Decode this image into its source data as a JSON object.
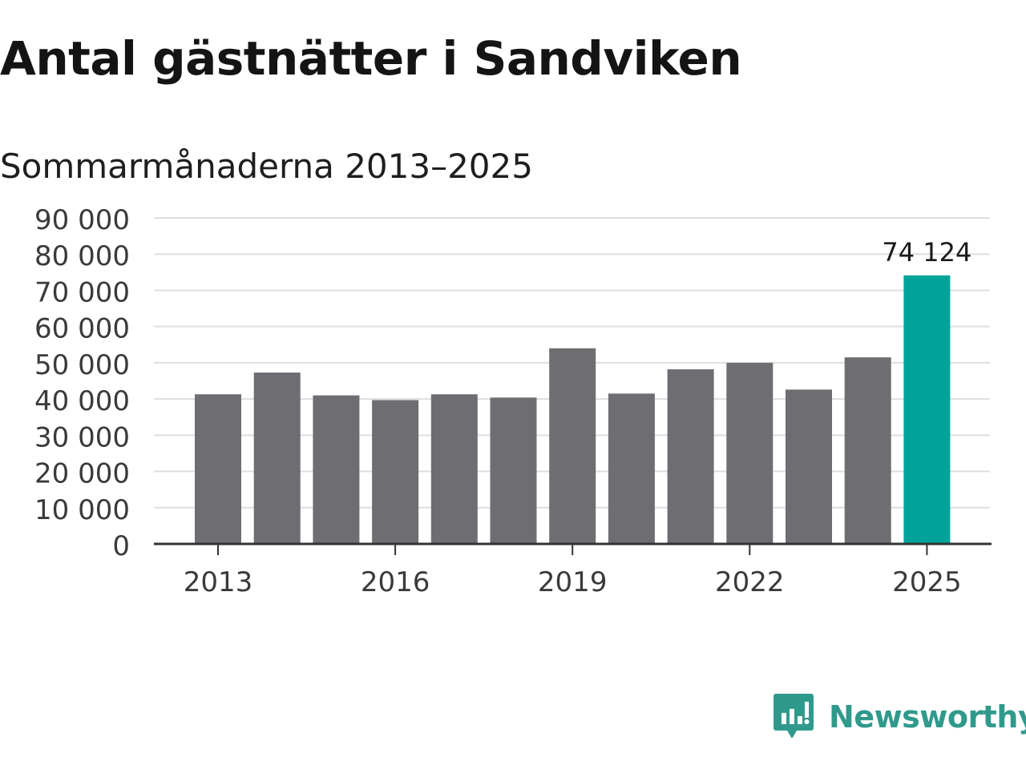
{
  "chart_data": {
    "type": "bar",
    "title": "Antal gästnätter i Sandviken",
    "subtitle": "Sommarmånaderna 2013–2025",
    "categories": [
      "2013",
      "2014",
      "2015",
      "2016",
      "2017",
      "2018",
      "2019",
      "2020",
      "2021",
      "2022",
      "2023",
      "2024",
      "2025"
    ],
    "values": [
      41300,
      47300,
      41000,
      39700,
      41300,
      40400,
      54000,
      41500,
      48200,
      50000,
      42600,
      51500,
      74124
    ],
    "x_tick_labels": [
      "2013",
      "2016",
      "2019",
      "2022",
      "2025"
    ],
    "y_tick_labels": [
      "0",
      "10 000",
      "20 000",
      "30 000",
      "40 000",
      "50 000",
      "60 000",
      "70 000",
      "80 000",
      "90 000"
    ],
    "ylim": [
      0,
      90000
    ],
    "grid": true,
    "data_labels": [
      {
        "category": "2025",
        "text": "74 124"
      }
    ],
    "colors": {
      "default_bar": "#6e6d72",
      "highlight_bar": "#00a39a",
      "grid": "#dedede",
      "axis": "#333333"
    },
    "highlight_category": "2025"
  },
  "branding": {
    "logo_text": "Newsworthy",
    "logo_icon": "chart-bubble-icon",
    "logo_color": "#2f9a8c"
  }
}
